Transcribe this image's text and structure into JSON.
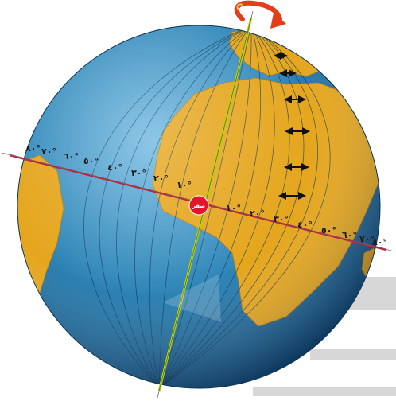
{
  "diagram": {
    "colors": {
      "ocean": "#2f86b8",
      "land": "#e5a61d",
      "equator": "#c4203a",
      "axis": "#b6d400",
      "center_dot": "#e2152b",
      "rotation_arrow": "#e43d18"
    },
    "center_label": "صفر",
    "degree_labels_west": [
      "٨٠°",
      "٧٠°",
      "٦٠°",
      "٥٠°",
      "٤٠°",
      "٣٠°",
      "٢٠°",
      "١٠°"
    ],
    "degree_labels_east": [
      "١٠°",
      "٢٠°",
      "٣٠°",
      "٤٠°",
      "٥٠°",
      "٦٠°",
      "٧٠°",
      "٨٠°"
    ],
    "icons": [
      "rotation-arrow-icon",
      "double-arrow-icon"
    ]
  }
}
